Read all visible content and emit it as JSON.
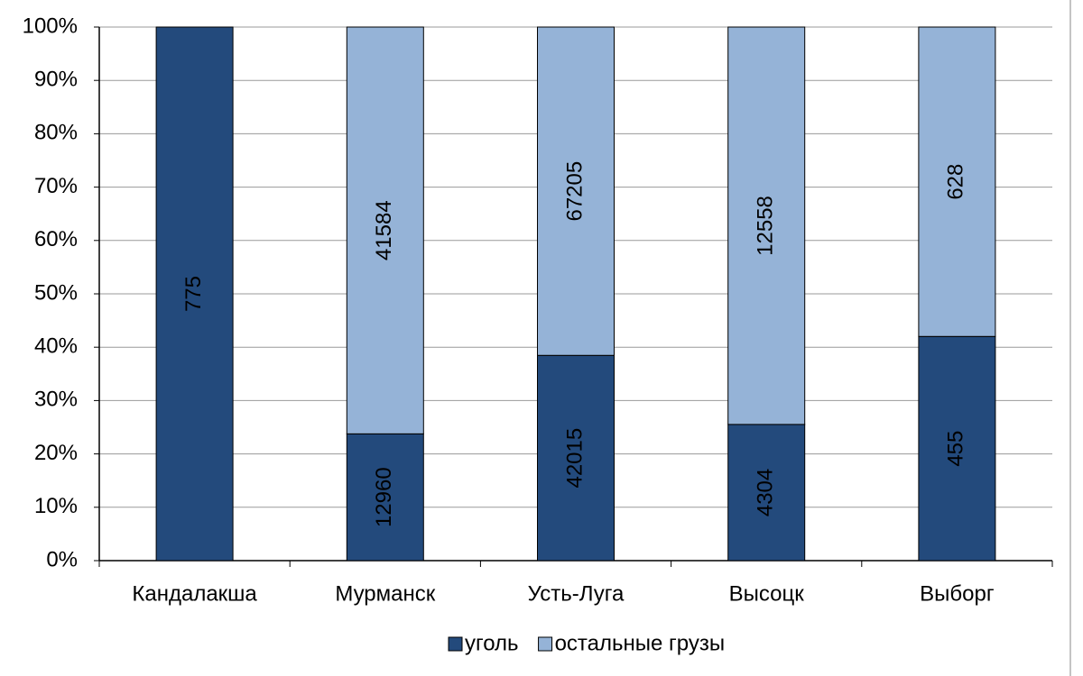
{
  "chart_data": {
    "type": "bar",
    "stacking": "percent",
    "categories": [
      "Кандалакша",
      "Мурманск",
      "Усть-Луга",
      "Высоцк",
      "Выборг"
    ],
    "series": [
      {
        "name": "уголь",
        "color": "#234a7c",
        "values": [
          775,
          12960,
          42015,
          4304,
          455
        ]
      },
      {
        "name": "остальные грузы",
        "color": "#95b3d7",
        "values": [
          null,
          41584,
          67205,
          12558,
          628
        ]
      }
    ],
    "ylim": [
      0,
      100
    ],
    "yticks": [
      {
        "value": 0,
        "label": "0%"
      },
      {
        "value": 10,
        "label": "10%"
      },
      {
        "value": 20,
        "label": "20%"
      },
      {
        "value": 30,
        "label": "30%"
      },
      {
        "value": 40,
        "label": "40%"
      },
      {
        "value": 50,
        "label": "50%"
      },
      {
        "value": 60,
        "label": "60%"
      },
      {
        "value": 70,
        "label": "70%"
      },
      {
        "value": 80,
        "label": "80%"
      },
      {
        "value": 90,
        "label": "90%"
      },
      {
        "value": 100,
        "label": "100%"
      }
    ],
    "grid": true,
    "legend": "bottom"
  }
}
